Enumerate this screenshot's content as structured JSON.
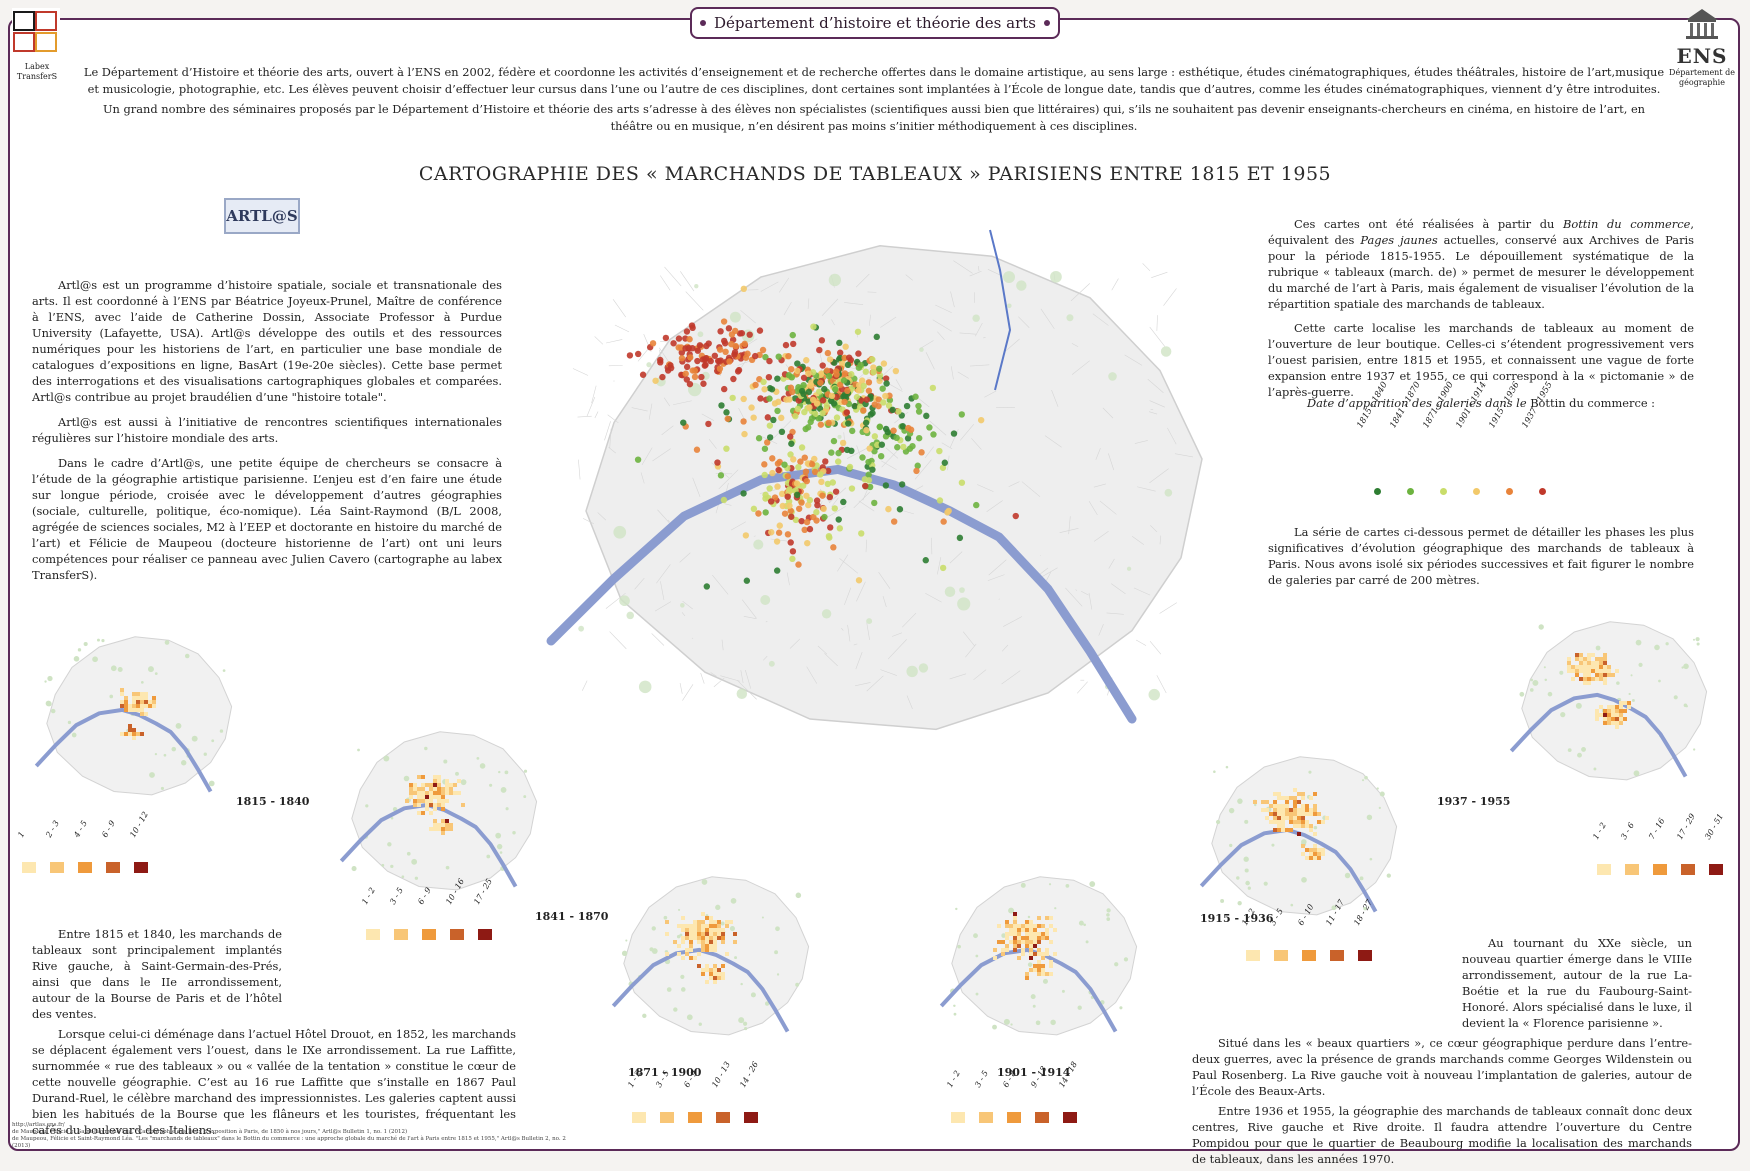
{
  "header": {
    "banner": "Département d’histoire et théorie des arts",
    "logo_left_caption": "Labex TransferS",
    "logo_left_mark": "TRANSFERS",
    "logo_right_name": "ENS",
    "logo_right_caption": "Département de géographie"
  },
  "intro": {
    "p1": "Le Département d’Histoire et théorie des arts, ouvert à l’ENS en 2002, fédère et coordonne les activités d’enseignement et de recherche offertes dans le domaine artistique, au sens large : esthétique, études cinématographiques, études théâtrales, histoire de l’art,musique et musicologie, photographie, etc. Les élèves peuvent choisir d’effectuer leur cursus dans l’une ou l’autre de ces disciplines, dont certaines sont implantées à l’École de longue date, tandis que d’autres, comme les études cinématographiques, viennent d’y être introduites.",
    "p2": "Un grand nombre des séminaires proposés par le Département d’Histoire et théorie des arts s’adresse à des élèves non spécialistes (scientifiques aussi bien que littéraires) qui, s’ils ne souhaitent pas devenir enseignants-chercheurs en cinéma, en histoire de l’art, en théâtre ou en musique, n’en désirent pas moins s’initier méthodiquement à ces disciplines."
  },
  "title": "CARTOGRAPHIE DES « MARCHANDS DE TABLEAUX » PARISIENS ENTRE 1815 ET 1955",
  "artlas_logo": "ARTL@S",
  "left_text": {
    "p1": "Artl@s est un programme d’histoire spatiale, sociale et transnationale des arts. Il est coordonné à l’ENS par Béatrice Joyeux-Prunel, Maître de conférence à l’ENS, avec l’aide de Catherine Dossin, Associate Professor à Purdue University (Lafayette, USA). Artl@s développe des outils et des ressources numériques pour les historiens de l’art, en particulier une base mondiale de catalogues d’expositions en ligne, BasArt (19e-20e siècles). Cette base permet des interrogations et des visualisations cartographiques globales et comparées. Artl@s contribue au projet braudélien d’une \"histoire totale\".",
    "p2": "Artl@s est aussi à l’initiative de rencontres scientifiques internationales régulières sur l’histoire mondiale des arts.",
    "p3": "Dans le cadre d’Artl@s, une petite équipe de chercheurs se consacre à l’étude de la géographie artistique parisienne. L’enjeu est d’en faire une étude sur longue période, croisée avec le développement d’autres géographies (sociale, culturelle, politique, éco-nomique). Léa Saint-Raymond (B/L 2008, agrégée de sciences sociales, M2 à l’EEP et doctorante en histoire du marché de l’art) et Félicie de Maupeou (docteure historienne de l’art) ont uni leurs compétences pour réaliser ce panneau avec Julien Cavero (cartographe au labex TransferS)."
  },
  "right_text": {
    "p1_before": "Ces cartes ont été réalisées à partir du ",
    "p1_em1": "Bottin du commerce",
    "p1_mid": ", équivalent des ",
    "p1_em2": "Pages jaunes",
    "p1_after": " actuelles, conservé aux Archives de Paris pour la période 1815-1955. Le dépouillement systématique de la rubrique « tableaux (march. de) » permet de mesurer le développement du marché de l’art à Paris, mais également de visualiser l’évolution de la répartition spatiale des marchands de tableaux.",
    "p2": "Cette carte localise les marchands de tableaux au moment de l’ouverture de leur boutique. Celles-ci s’étendent progressivement vers l’ouest parisien, entre 1815 et 1955, et connaissent une vague de forte expansion entre 1937 et 1955, ce qui correspond à la « pictomanie » de l’après-guerre."
  },
  "legend": {
    "title_italic": "Date d’apparition des galeries dans le ",
    "title_normal": "Bottin du commerce :",
    "items": [
      {
        "label": "1815 - 1840",
        "color": "#2e7d32"
      },
      {
        "label": "1841 - 1870",
        "color": "#6db33f"
      },
      {
        "label": "1871 - 1900",
        "color": "#c9dd6a"
      },
      {
        "label": "1901 - 1914",
        "color": "#f2c96a"
      },
      {
        "label": "1915 - 1936",
        "color": "#e8833a"
      },
      {
        "label": "1937 - 1955",
        "color": "#c0392b"
      }
    ]
  },
  "series_text": "La série de cartes ci-dessous permet de détailler les phases les plus significatives d’évolution géographique des marchands de tableaux à Paris. Nous avons isolé six périodes successives et fait figurer le nombre de galeries par carré de 200 mètres.",
  "periods": [
    {
      "label": "1815 - 1840",
      "scale": [
        "1",
        "2 - 3",
        "4 - 5",
        "6 - 9",
        "10 - 12"
      ]
    },
    {
      "label": "1841 - 1870",
      "scale": [
        "1 - 2",
        "3 - 5",
        "6 - 9",
        "10 - 16",
        "17 - 25"
      ]
    },
    {
      "label": "1871 - 1900",
      "scale": [
        "1 - 2",
        "3 - 5",
        "6 - 9",
        "10 - 13",
        "14 - 26"
      ]
    },
    {
      "label": "1901 - 1914",
      "scale": [
        "1 - 2",
        "3 - 5",
        "6 - 8",
        "9 - 13",
        "14 - 18"
      ]
    },
    {
      "label": "1915 - 1936",
      "scale": [
        "1 - 2",
        "3 - 5",
        "6 - 10",
        "11 - 17",
        "18 - 27"
      ]
    },
    {
      "label": "1937 - 1955",
      "scale": [
        "1 - 2",
        "3 - 6",
        "7 - 16",
        "17 - 29",
        "30 - 51"
      ]
    }
  ],
  "scale_colors": [
    "#fde7b0",
    "#f8c677",
    "#ef9a3c",
    "#c9622a",
    "#8e1a14"
  ],
  "bottom_left": {
    "p1": "Entre 1815 et 1840, les marchands de tableaux sont principalement implantés Rive gauche, à Saint-Germain-des-Prés, ainsi que dans le IIe arrondissement, autour de la Bourse de Paris et de l’hôtel des ventes.",
    "p2": "Lorsque celui-ci déménage dans l’actuel Hôtel Drouot, en 1852, les marchands se déplacent également vers l’ouest, dans le IXe arrondissement. La rue Laffitte, surnommée « rue des tableaux » ou « vallée de la tentation » constitue le cœur de cette nouvelle géographie. C’est au 16 rue Laffitte que s’installe en 1867 Paul Durand-Ruel, le célèbre marchand des impressionnistes. Les galeries captent aussi bien les habitués de la Bourse que les flâneurs et les touristes, fréquentant les cafés du boulevard des Italiens."
  },
  "bottom_right": {
    "p1": "Au tournant du XXe siècle, un nouveau quartier émerge dans le VIIIe arrondissement, autour de la rue La-Boétie et la rue du Faubourg-Saint-Honoré. Alors spécialisé dans le luxe, il devient la « Florence parisienne ».",
    "p2": "Situé dans les « beaux quartiers », ce cœur géographique perdure dans l’entre-deux guerres, avec la présence de grands marchands comme Georges Wildenstein ou Paul Rosenberg. La Rive gauche voit à nouveau l’implantation de galeries, autour de l’École des Beaux-Arts.",
    "p3": "Entre 1936 et 1955, la géographie des marchands de tableaux connaît donc deux centres, Rive gauche et Rive droite. Il faudra attendre l’ouverture du Centre Pompidou pour que le quartier de Beaubourg modifie la localisation des marchands de tableaux, dans les années 1970."
  },
  "references": {
    "r1": "http://artlas.ens.fr/",
    "r2": "de Maupeou, Félicie et Saint-Raymond Léa. \"Cartographie des lieux d'exposition à Paris, de 1850 à nos jours,\" Artl@s Bulletin 1, no. 1 (2012)",
    "r3": "de Maupeou, Félicie et Saint-Raymond Léa. \"Les \"marchands de tableaux\" dans le Bottin du commerce : une approche globale du marché de l'art à Paris entre 1815 et 1955,\" Artl@s Bulletin 2, no. 2 (2013)"
  },
  "icons": [
    "transfers-logo",
    "ens-building-icon",
    "artlas-stamp",
    "main-map",
    "river-seine"
  ]
}
